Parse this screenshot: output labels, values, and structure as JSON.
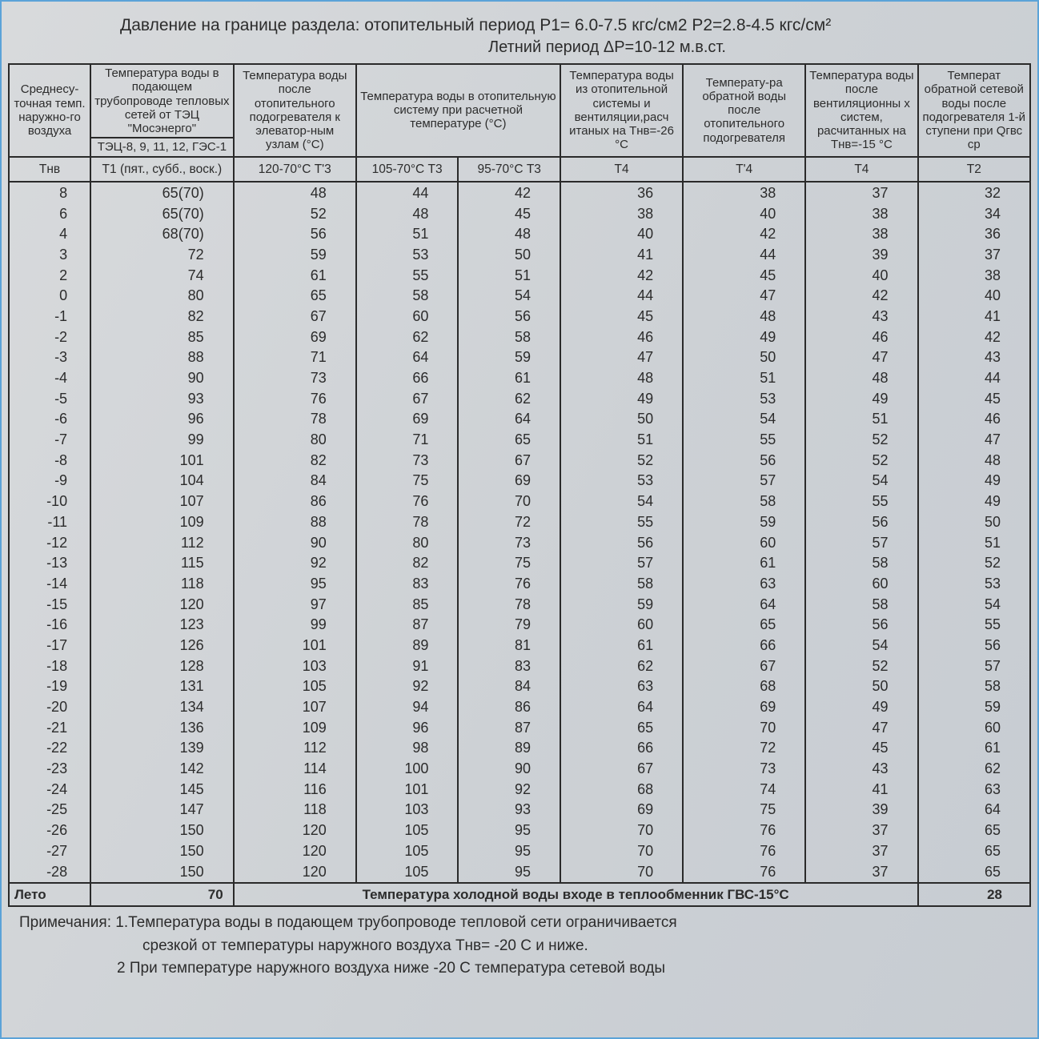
{
  "header": {
    "line1": "Давление на границе раздела: отопительный период  P1= 6.0-7.5   кгс/см2    P2=2.8-4.5    кгс/см²",
    "line2": "Летний период              ΔP=10-12 м.в.ст."
  },
  "columns": {
    "widths_pct": [
      8,
      14,
      12,
      10,
      10,
      12,
      12,
      11,
      11
    ],
    "top": [
      "Среднесу-точная темп. наружно-го воздуха",
      "Температура воды в подающем трубопроводе тепловых сетей от ТЭЦ \"Мосэнерго\"",
      "Температура воды после отопительного подогревателя к элеватор-ным узлам (°С)",
      "Температура воды в отопительную систему при расчетной температуре (°С)",
      "Температура воды из отопительной системы и вентиляции,расч итаных на Тнв=-26 °С",
      "Температу-ра обратной воды после отопительного подогревателя",
      "Температура воды после вентиляционны х систем, расчитанных на Тнв=-15 °С",
      "Температ обратной сетевой воды после подогревателя 1-й ступени при Qгвс ср"
    ],
    "sub_row2": "ТЭЦ-8, 9, 11, 12, ГЭС-1",
    "sub": [
      "Тнв",
      "Т1 (пят., субб., воск.)",
      "120-70°С Т'3",
      "105-70°С Т3",
      "95-70°С Т3",
      "Т4",
      "Т'4",
      "Т4",
      "Т2"
    ]
  },
  "rows": [
    [
      "8",
      "65(70)",
      "48",
      "44",
      "42",
      "36",
      "38",
      "37",
      "32"
    ],
    [
      "6",
      "65(70)",
      "52",
      "48",
      "45",
      "38",
      "40",
      "38",
      "34"
    ],
    [
      "4",
      "68(70)",
      "56",
      "51",
      "48",
      "40",
      "42",
      "38",
      "36"
    ],
    [
      "3",
      "72",
      "59",
      "53",
      "50",
      "41",
      "44",
      "39",
      "37"
    ],
    [
      "2",
      "74",
      "61",
      "55",
      "51",
      "42",
      "45",
      "40",
      "38"
    ],
    [
      "0",
      "80",
      "65",
      "58",
      "54",
      "44",
      "47",
      "42",
      "40"
    ],
    [
      "-1",
      "82",
      "67",
      "60",
      "56",
      "45",
      "48",
      "43",
      "41"
    ],
    [
      "-2",
      "85",
      "69",
      "62",
      "58",
      "46",
      "49",
      "46",
      "42"
    ],
    [
      "-3",
      "88",
      "71",
      "64",
      "59",
      "47",
      "50",
      "47",
      "43"
    ],
    [
      "-4",
      "90",
      "73",
      "66",
      "61",
      "48",
      "51",
      "48",
      "44"
    ],
    [
      "-5",
      "93",
      "76",
      "67",
      "62",
      "49",
      "53",
      "49",
      "45"
    ],
    [
      "-6",
      "96",
      "78",
      "69",
      "64",
      "50",
      "54",
      "51",
      "46"
    ],
    [
      "-7",
      "99",
      "80",
      "71",
      "65",
      "51",
      "55",
      "52",
      "47"
    ],
    [
      "-8",
      "101",
      "82",
      "73",
      "67",
      "52",
      "56",
      "52",
      "48"
    ],
    [
      "-9",
      "104",
      "84",
      "75",
      "69",
      "53",
      "57",
      "54",
      "49"
    ],
    [
      "-10",
      "107",
      "86",
      "76",
      "70",
      "54",
      "58",
      "55",
      "49"
    ],
    [
      "-11",
      "109",
      "88",
      "78",
      "72",
      "55",
      "59",
      "56",
      "50"
    ],
    [
      "-12",
      "112",
      "90",
      "80",
      "73",
      "56",
      "60",
      "57",
      "51"
    ],
    [
      "-13",
      "115",
      "92",
      "82",
      "75",
      "57",
      "61",
      "58",
      "52"
    ],
    [
      "-14",
      "118",
      "95",
      "83",
      "76",
      "58",
      "63",
      "60",
      "53"
    ],
    [
      "-15",
      "120",
      "97",
      "85",
      "78",
      "59",
      "64",
      "58",
      "54"
    ],
    [
      "-16",
      "123",
      "99",
      "87",
      "79",
      "60",
      "65",
      "56",
      "55"
    ],
    [
      "-17",
      "126",
      "101",
      "89",
      "81",
      "61",
      "66",
      "54",
      "56"
    ],
    [
      "-18",
      "128",
      "103",
      "91",
      "83",
      "62",
      "67",
      "52",
      "57"
    ],
    [
      "-19",
      "131",
      "105",
      "92",
      "84",
      "63",
      "68",
      "50",
      "58"
    ],
    [
      "-20",
      "134",
      "107",
      "94",
      "86",
      "64",
      "69",
      "49",
      "59"
    ],
    [
      "-21",
      "136",
      "109",
      "96",
      "87",
      "65",
      "70",
      "47",
      "60"
    ],
    [
      "-22",
      "139",
      "112",
      "98",
      "89",
      "66",
      "72",
      "45",
      "61"
    ],
    [
      "-23",
      "142",
      "114",
      "100",
      "90",
      "67",
      "73",
      "43",
      "62"
    ],
    [
      "-24",
      "145",
      "116",
      "101",
      "92",
      "68",
      "74",
      "41",
      "63"
    ],
    [
      "-25",
      "147",
      "118",
      "103",
      "93",
      "69",
      "75",
      "39",
      "64"
    ],
    [
      "-26",
      "150",
      "120",
      "105",
      "95",
      "70",
      "76",
      "37",
      "65"
    ],
    [
      "-27",
      "150",
      "120",
      "105",
      "95",
      "70",
      "76",
      "37",
      "65"
    ],
    [
      "-28",
      "150",
      "120",
      "105",
      "95",
      "70",
      "76",
      "37",
      "65"
    ]
  ],
  "footer": {
    "label": "Лето",
    "val1": "70",
    "mid": "Температура холодной воды входе в теплообменник ГВС-15°С",
    "val2": "28"
  },
  "notes": {
    "n1": "Примечания: 1.Температура воды в подающем трубопроводе тепловой сети ограничивается",
    "n1b": "срезкой от температуры наружного воздуха Тнв= -20 С и ниже.",
    "n2": "2  При температуре наружного воздуха ниже -20 С температура сетевой воды"
  },
  "style": {
    "border_color": "#2a2a2a",
    "page_border": "#5ba3d8",
    "bg_grad": [
      "#d8dadc",
      "#c7ccd2"
    ],
    "text_color": "#2c2c2c",
    "header_fontsize": 21,
    "cell_fontsize": 18,
    "font_family": "Arial"
  }
}
